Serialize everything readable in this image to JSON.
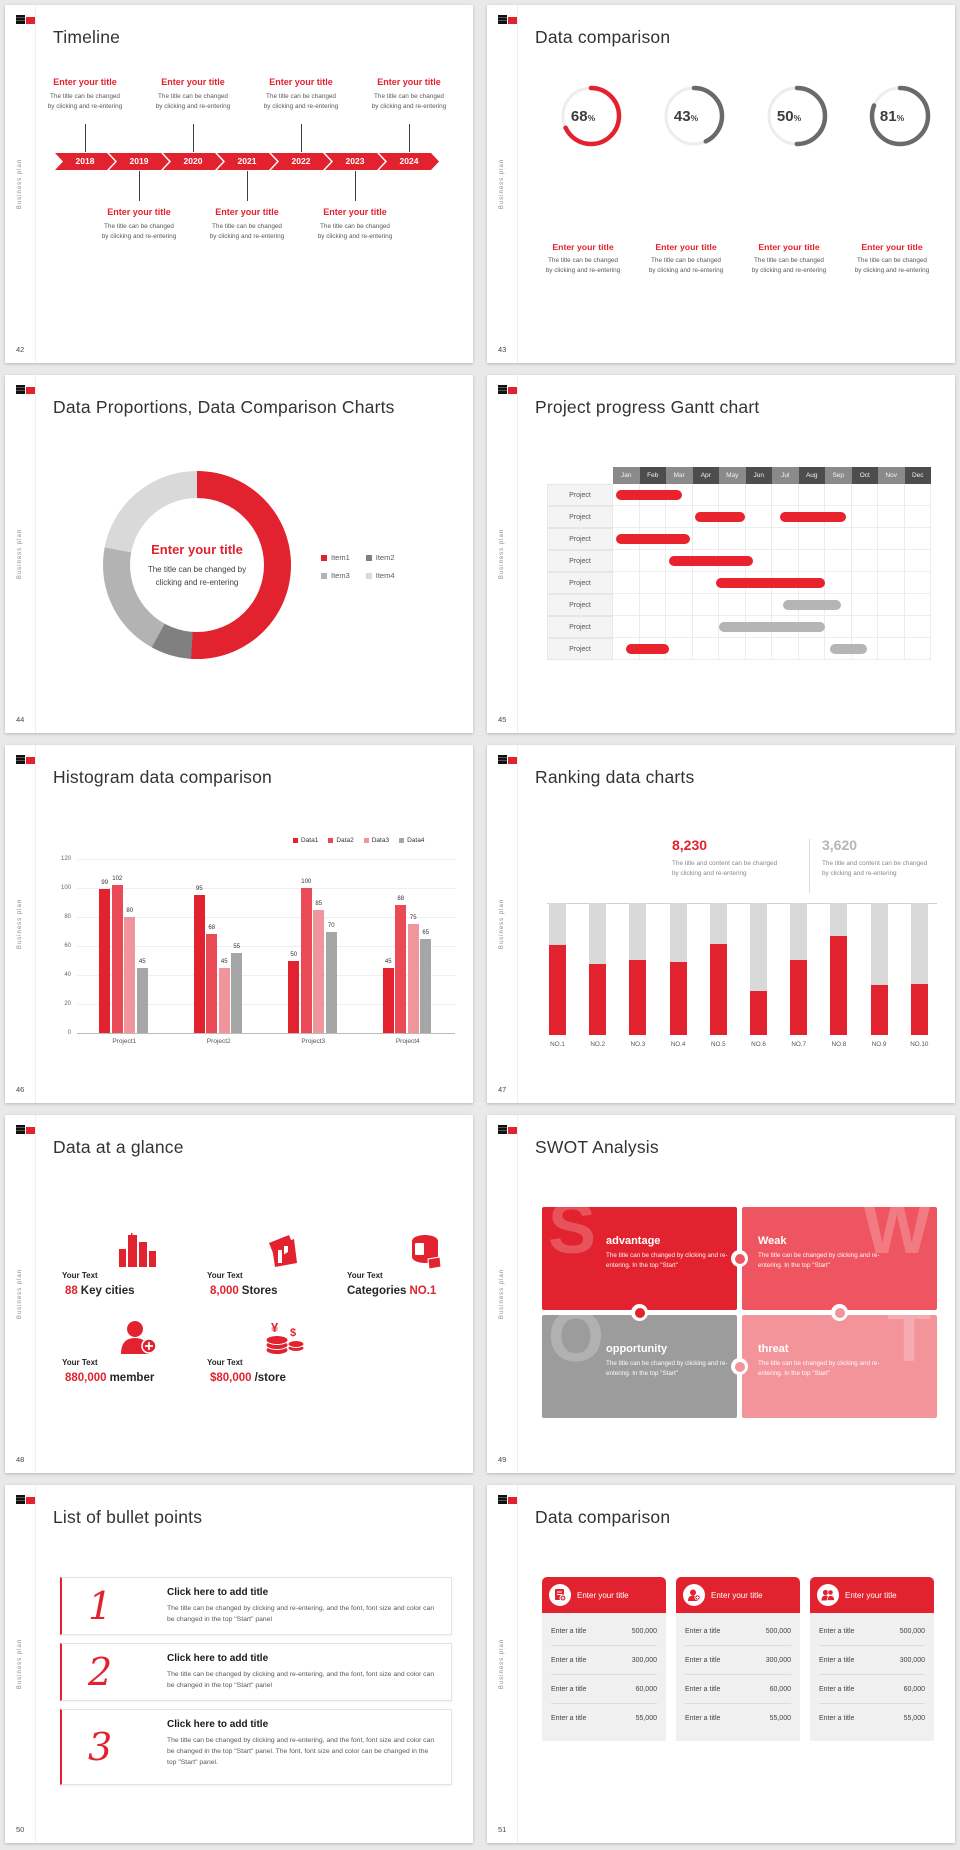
{
  "brand": {
    "vertical_label": "Business plan",
    "accent_red": "#e2222e"
  },
  "slides": {
    "timeline": {
      "number": "42",
      "title": "Timeline",
      "years": [
        "2018",
        "2019",
        "2020",
        "2021",
        "2022",
        "2023",
        "2024"
      ],
      "top_items": [
        {
          "title": "Enter your title",
          "line1": "The title can be changed",
          "line2": "by clicking and re-entering"
        },
        {
          "title": "Enter your title",
          "line1": "The title can be changed",
          "line2": "by clicking and re-entering"
        },
        {
          "title": "Enter your title",
          "line1": "The title can be changed",
          "line2": "by clicking and re-entering"
        },
        {
          "title": "Enter your title",
          "line1": "The title can be changed",
          "line2": "by clicking and re-entering"
        }
      ],
      "bottom_items": [
        {
          "title": "Enter your title",
          "line1": "The title can be changed",
          "line2": "by clicking and re-entering"
        },
        {
          "title": "Enter your title",
          "line1": "The title can be changed",
          "line2": "by clicking and re-entering"
        },
        {
          "title": "Enter your title",
          "line1": "The title can be changed",
          "line2": "by clicking and re-entering"
        }
      ]
    },
    "progress_rings": {
      "number": "43",
      "title": "Data comparison",
      "items": [
        {
          "percent": "68",
          "suffix": "%",
          "ring_color": "#e2222e",
          "title": "Enter your title",
          "line1": "The title can be changed",
          "line2": "by clicking and re-entering"
        },
        {
          "percent": "43",
          "suffix": "%",
          "ring_color": "#6a6a6a",
          "title": "Enter your title",
          "line1": "The title can be changed",
          "line2": "by clicking and re-entering"
        },
        {
          "percent": "50",
          "suffix": "%",
          "ring_color": "#6a6a6a",
          "title": "Enter your title",
          "line1": "The title can be changed",
          "line2": "by clicking and re-entering"
        },
        {
          "percent": "81",
          "suffix": "%",
          "ring_color": "#6a6a6a",
          "title": "Enter your title",
          "line1": "The title can be changed",
          "line2": "by clicking and re-entering"
        }
      ]
    },
    "proportions": {
      "number": "44",
      "title": "Data Proportions, Data Comparison Charts",
      "center_title": "Enter your title",
      "center_line1": "The title can be changed by",
      "center_line2": "clicking and re-entering",
      "legend": [
        {
          "label": "Item1",
          "color": "#e2222e"
        },
        {
          "label": "Item2",
          "color": "#808080"
        },
        {
          "label": "Item3",
          "color": "#b3b3b3"
        },
        {
          "label": "Item4",
          "color": "#d9d9d9"
        }
      ],
      "values": [
        51,
        7,
        20,
        22
      ]
    },
    "gantt": {
      "number": "45",
      "title": "Project progress Gantt chart",
      "months": [
        "Jan",
        "Feb",
        "Mar",
        "Apr",
        "May",
        "Jun",
        "Jul",
        "Aug",
        "Sep",
        "Oct",
        "Nov",
        "Dec"
      ],
      "row_label": "Project",
      "rows": [
        {
          "bars": [
            {
              "start": 0.1,
              "end": 2.6,
              "color": "red"
            }
          ]
        },
        {
          "bars": [
            {
              "start": 3.1,
              "end": 5.0,
              "color": "red"
            },
            {
              "start": 6.3,
              "end": 8.8,
              "color": "red"
            }
          ]
        },
        {
          "bars": [
            {
              "start": 0.1,
              "end": 2.9,
              "color": "red"
            }
          ]
        },
        {
          "bars": [
            {
              "start": 2.1,
              "end": 5.3,
              "color": "red"
            }
          ]
        },
        {
          "bars": [
            {
              "start": 3.9,
              "end": 8.0,
              "color": "red"
            }
          ]
        },
        {
          "bars": [
            {
              "start": 6.4,
              "end": 8.6,
              "color": "gray"
            }
          ]
        },
        {
          "bars": [
            {
              "start": 4.0,
              "end": 8.0,
              "color": "gray"
            }
          ]
        },
        {
          "bars": [
            {
              "start": 0.5,
              "end": 2.1,
              "color": "red"
            },
            {
              "start": 8.2,
              "end": 9.6,
              "color": "gray"
            }
          ]
        }
      ]
    },
    "histogram": {
      "number": "46",
      "title": "Histogram data comparison",
      "legend": [
        "Data1",
        "Data2",
        "Data3",
        "Data4"
      ],
      "series_colors": [
        "#e2222e",
        "#e94a55",
        "#f0959c",
        "#a6a6a6"
      ],
      "categories": [
        "Project1",
        "Project2",
        "Project3",
        "Project4"
      ],
      "values": [
        [
          99,
          102,
          80,
          45
        ],
        [
          95,
          68,
          45,
          55
        ],
        [
          50,
          100,
          85,
          70
        ],
        [
          45,
          88,
          75,
          65
        ]
      ],
      "yticks": [
        0,
        20,
        40,
        60,
        80,
        100,
        120
      ]
    },
    "ranking": {
      "number": "47",
      "title": "Ranking data charts",
      "stat1": {
        "value": "8,230",
        "color": "#e2222e",
        "line1": "The title and content can be changed",
        "line2": "by clicking and re-entering"
      },
      "stat2": {
        "value": "3,620",
        "color": "#b5b5b5",
        "line1": "The title and content can be changed",
        "line2": "by clicking and re-entering"
      },
      "categories": [
        "NO.1",
        "NO.2",
        "NO.3",
        "NO.4",
        "NO.5",
        "NO.6",
        "NO.7",
        "NO.8",
        "NO.9",
        "NO.10"
      ],
      "red_percents": [
        68,
        54,
        57,
        55,
        69,
        33,
        57,
        75,
        38,
        39
      ]
    },
    "glance": {
      "number": "48",
      "title": "Data at a glance",
      "stats": [
        {
          "label": "Your Text",
          "pre": "",
          "value": "88",
          "post": "Key cities",
          "icon": "city-icon"
        },
        {
          "label": "Your Text",
          "pre": "",
          "value": "8,000",
          "post": "Stores",
          "icon": "store-icon"
        },
        {
          "label": "Your Text",
          "pre": "Categories",
          "value": "NO.1",
          "post": "",
          "icon": "categories-icon"
        },
        {
          "label": "Your Text",
          "pre": "",
          "value": "880,000",
          "post": "member",
          "icon": "member-icon"
        },
        {
          "label": "Your Text",
          "pre": "",
          "value": "$80,000",
          "post": "/store",
          "icon": "money-icon"
        }
      ]
    },
    "swot": {
      "number": "49",
      "title": "SWOT Analysis",
      "quads": [
        {
          "letter": "S",
          "title": "advantage",
          "body": "The title can be changed by clicking and re-entering. In the top \"Start\"",
          "color": "#e2222e",
          "letter_side": "left"
        },
        {
          "letter": "W",
          "title": "Weak",
          "body": "The title can be changed by clicking and re-entering. In the top \"Start\"",
          "color": "#ef5560",
          "letter_side": "right"
        },
        {
          "letter": "O",
          "title": "opportunity",
          "body": "The title can be changed by clicking and re-entering. In the top \"Start\"",
          "color": "#9c9c9c",
          "letter_side": "left"
        },
        {
          "letter": "T",
          "title": "threat",
          "body": "The title can be changed by clicking and re-entering. In the top \"Start\"",
          "color": "#f3949b",
          "letter_side": "right"
        }
      ]
    },
    "bullets": {
      "number": "50",
      "title": "List of bullet points",
      "items": [
        {
          "num": "1",
          "title": "Click here to add title",
          "body": "The title can be changed by clicking and re-entering, and the font, font size and color can be changed in the top \"Start\" panel"
        },
        {
          "num": "2",
          "title": "Click here to add title",
          "body": "The title can be changed by clicking and re-entering, and the font, font size and color can be changed in the top \"Start\" panel"
        },
        {
          "num": "3",
          "title": "Click here to add title",
          "body": "The title can be changed by clicking and re-entering, and the font, font size and color can be changed in the top \"Start\" panel. The font, font size and color can be changed in the top \"Start\" panel."
        }
      ]
    },
    "comparison": {
      "number": "51",
      "title": "Data comparison",
      "cards": [
        {
          "header": "Enter your title",
          "icon": "report-person-icon",
          "rows": [
            [
              "Enter a title",
              "500,000"
            ],
            [
              "Enter a title",
              "300,000"
            ],
            [
              "Enter a title",
              "60,000"
            ],
            [
              "Enter a title",
              "55,000"
            ]
          ]
        },
        {
          "header": "Enter your title",
          "icon": "person-add-icon",
          "rows": [
            [
              "Enter a title",
              "500,000"
            ],
            [
              "Enter a title",
              "300,000"
            ],
            [
              "Enter a title",
              "60,000"
            ],
            [
              "Enter a title",
              "55,000"
            ]
          ]
        },
        {
          "header": "Enter your title",
          "icon": "people-icon",
          "rows": [
            [
              "Enter a title",
              "500,000"
            ],
            [
              "Enter a title",
              "300,000"
            ],
            [
              "Enter a title",
              "60,000"
            ],
            [
              "Enter a title",
              "55,000"
            ]
          ]
        }
      ]
    }
  },
  "chart_data": [
    {
      "type": "pie",
      "variant": "progress-rings",
      "values": [
        68,
        43,
        50,
        81
      ],
      "unit": "%",
      "colors": [
        "#e2222e",
        "#6a6a6a",
        "#6a6a6a",
        "#6a6a6a"
      ]
    },
    {
      "type": "pie",
      "variant": "donut",
      "labels": [
        "Item1",
        "Item2",
        "Item3",
        "Item4"
      ],
      "values": [
        51,
        7,
        20,
        22
      ],
      "colors": [
        "#e2222e",
        "#808080",
        "#b3b3b3",
        "#d9d9d9"
      ],
      "title": "Enter your title",
      "legend_position": "right"
    },
    {
      "type": "bar",
      "variant": "gantt",
      "x": [
        "Jan",
        "Feb",
        "Mar",
        "Apr",
        "May",
        "Jun",
        "Jul",
        "Aug",
        "Sep",
        "Oct",
        "Nov",
        "Dec"
      ],
      "rows": [
        [
          [
            0.1,
            2.6,
            "red"
          ]
        ],
        [
          [
            3.1,
            5.0,
            "red"
          ],
          [
            6.3,
            8.8,
            "red"
          ]
        ],
        [
          [
            0.1,
            2.9,
            "red"
          ]
        ],
        [
          [
            2.1,
            5.3,
            "red"
          ]
        ],
        [
          [
            3.9,
            8.0,
            "red"
          ]
        ],
        [
          [
            6.4,
            8.6,
            "gray"
          ]
        ],
        [
          [
            4.0,
            8.0,
            "gray"
          ]
        ],
        [
          [
            0.5,
            2.1,
            "red"
          ],
          [
            8.2,
            9.6,
            "gray"
          ]
        ]
      ]
    },
    {
      "type": "bar",
      "variant": "grouped",
      "categories": [
        "Project1",
        "Project2",
        "Project3",
        "Project4"
      ],
      "series": [
        {
          "name": "Data1",
          "values": [
            99,
            95,
            50,
            45
          ]
        },
        {
          "name": "Data2",
          "values": [
            102,
            68,
            100,
            88
          ]
        },
        {
          "name": "Data3",
          "values": [
            80,
            45,
            85,
            75
          ]
        },
        {
          "name": "Data4",
          "values": [
            45,
            55,
            70,
            65
          ]
        }
      ],
      "ylim": [
        0,
        120
      ]
    },
    {
      "type": "bar",
      "variant": "ranking-stacked",
      "categories": [
        "NO.1",
        "NO.2",
        "NO.3",
        "NO.4",
        "NO.5",
        "NO.6",
        "NO.7",
        "NO.8",
        "NO.9",
        "NO.10"
      ],
      "values": [
        68,
        54,
        57,
        55,
        69,
        33,
        57,
        75,
        38,
        39
      ],
      "max": 100,
      "annotations": [
        "8,230",
        "3,620"
      ]
    }
  ]
}
